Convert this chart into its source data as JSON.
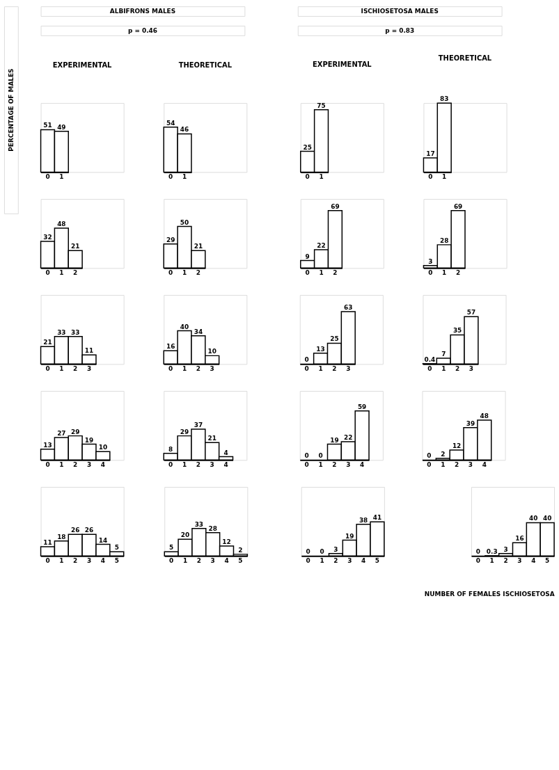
{
  "chart_data": [
    {
      "type": "bar",
      "title": "EXPERIMENTAL",
      "ylabel": "PERCENTAGE OF MALES",
      "annotations": [
        "ALBIFRONS MALES",
        "p = 0.46"
      ],
      "categories": [
        "0",
        "1"
      ],
      "values": [
        51,
        49
      ],
      "color": "#ffffff",
      "data_labels": true,
      "tick_labels": "x"
    },
    {
      "type": "bar",
      "title": "THEORETICAL",
      "categories": [
        "0",
        "1"
      ],
      "values": [
        54,
        46
      ],
      "color": "#ffffff",
      "data_labels": true,
      "tick_labels": "x"
    },
    {
      "type": "bar",
      "title": "EXPERIMENTAL",
      "annotations": [
        "ISCHIOSETOSA MALES",
        "p = 0.83"
      ],
      "categories": [
        "0",
        "1"
      ],
      "values": [
        25,
        75
      ],
      "color": "#ffffff",
      "data_labels": true,
      "tick_labels": "x"
    },
    {
      "type": "bar",
      "title": "THEORETICAL",
      "categories": [
        "0",
        "1"
      ],
      "values": [
        17,
        83
      ],
      "color": "#ffffff",
      "data_labels": true,
      "tick_labels": "x"
    },
    {
      "type": "bar",
      "categories": [
        "0",
        "1",
        "2"
      ],
      "values": [
        32,
        48,
        21
      ],
      "color": "#ffffff",
      "data_labels": true,
      "tick_labels": "x"
    },
    {
      "type": "bar",
      "categories": [
        "0",
        "1",
        "2"
      ],
      "values": [
        29,
        50,
        21
      ],
      "color": "#ffffff",
      "data_labels": true,
      "tick_labels": "x"
    },
    {
      "type": "bar",
      "categories": [
        "0",
        "1",
        "2"
      ],
      "values": [
        9,
        22,
        69
      ],
      "color": "#ffffff",
      "data_labels": true,
      "tick_labels": "x"
    },
    {
      "type": "bar",
      "categories": [
        "0",
        "1",
        "2"
      ],
      "values": [
        3,
        28,
        69
      ],
      "color": "#ffffff",
      "data_labels": true,
      "tick_labels": "x"
    },
    {
      "type": "bar",
      "categories": [
        "0",
        "1",
        "2",
        "3"
      ],
      "values": [
        21,
        33,
        33,
        11
      ],
      "color": "#ffffff",
      "data_labels": true,
      "tick_labels": "x"
    },
    {
      "type": "bar",
      "categories": [
        "0",
        "1",
        "2",
        "3"
      ],
      "values": [
        16,
        40,
        34,
        10
      ],
      "color": "#ffffff",
      "data_labels": true,
      "tick_labels": "x"
    },
    {
      "type": "bar",
      "categories": [
        "0",
        "1",
        "2",
        "3"
      ],
      "values": [
        0,
        13,
        25,
        63
      ],
      "color": "#ffffff",
      "data_labels": true,
      "tick_labels": "x"
    },
    {
      "type": "bar",
      "categories": [
        "0",
        "1",
        "2",
        "3"
      ],
      "values": [
        0.4,
        7,
        35,
        57
      ],
      "color": "#ffffff",
      "data_labels": true,
      "tick_labels": "x"
    },
    {
      "type": "bar",
      "categories": [
        "0",
        "1",
        "2",
        "3",
        "4"
      ],
      "values": [
        13,
        27,
        29,
        19,
        10
      ],
      "color": "#ffffff",
      "data_labels": true,
      "tick_labels": "x"
    },
    {
      "type": "bar",
      "categories": [
        "0",
        "1",
        "2",
        "3",
        "4"
      ],
      "values": [
        8,
        29,
        37,
        21,
        4
      ],
      "color": "#ffffff",
      "data_labels": true,
      "tick_labels": "x"
    },
    {
      "type": "bar",
      "categories": [
        "0",
        "1",
        "2",
        "3",
        "4"
      ],
      "values": [
        0,
        0,
        19,
        22,
        59
      ],
      "color": "#ffffff",
      "data_labels": true,
      "tick_labels": "x"
    },
    {
      "type": "bar",
      "categories": [
        "0",
        "1",
        "2",
        "3",
        "4"
      ],
      "values": [
        0,
        2,
        12,
        39,
        48
      ],
      "color": "#ffffff",
      "data_labels": true,
      "tick_labels": "x"
    },
    {
      "type": "bar",
      "categories": [
        "0",
        "1",
        "2",
        "3",
        "4",
        "5"
      ],
      "values": [
        11,
        18,
        26,
        26,
        14,
        5
      ],
      "color": "#ffffff",
      "data_labels": true,
      "tick_labels": "x"
    },
    {
      "type": "bar",
      "categories": [
        "0",
        "1",
        "2",
        "3",
        "4",
        "5"
      ],
      "values": [
        5,
        20,
        33,
        28,
        12,
        2
      ],
      "color": "#ffffff",
      "data_labels": true,
      "tick_labels": "x"
    },
    {
      "type": "bar",
      "categories": [
        "0",
        "1",
        "2",
        "3",
        "4",
        "5"
      ],
      "values": [
        0,
        0,
        3,
        19,
        38,
        41
      ],
      "color": "#ffffff",
      "data_labels": true,
      "tick_labels": "x"
    },
    {
      "type": "bar",
      "xlabel": "NUMBER OF FEMALES ISCHIOSETOSA",
      "categories": [
        "0",
        "1",
        "2",
        "3",
        "4",
        "5"
      ],
      "values": [
        0,
        0.3,
        3,
        16,
        40,
        40
      ],
      "color": "#ffffff",
      "data_labels": true,
      "tick_labels": "x"
    }
  ]
}
